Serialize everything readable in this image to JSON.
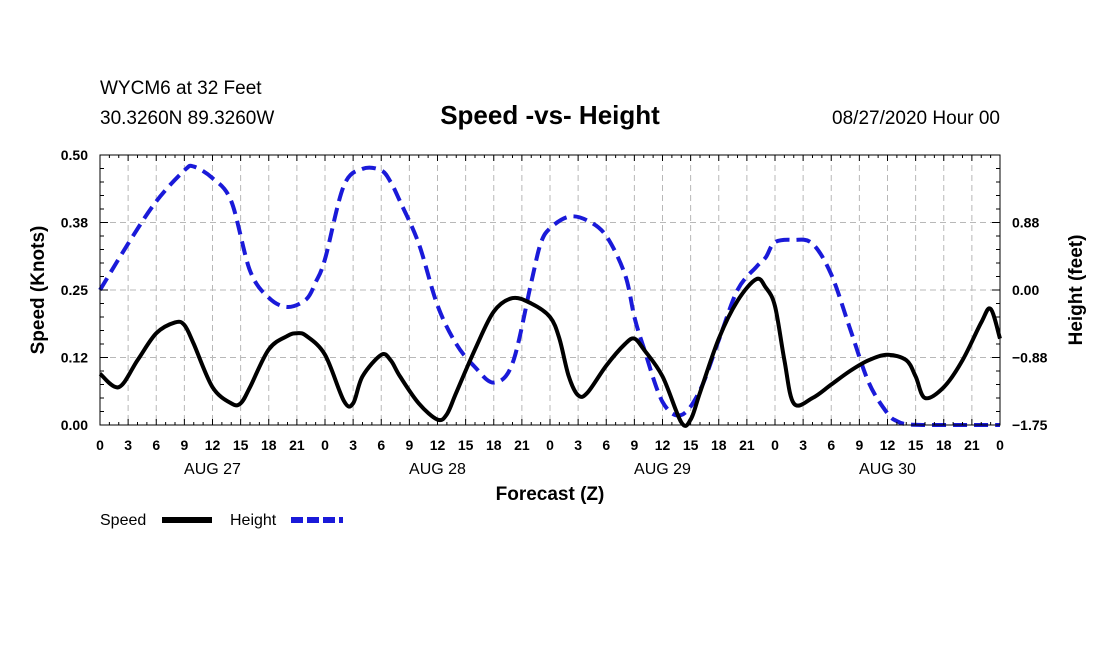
{
  "chart_data": {
    "type": "line",
    "station": "WYCM6 at 32 Feet",
    "location": "30.3260N 89.3260W",
    "title": "Speed -vs- Height",
    "issued": "08/27/2020 Hour 00",
    "xlabel": "Forecast (Z)",
    "ylabel_left": "Speed (Knots)",
    "ylabel_right": "Height (feet)",
    "x_tick_labels": [
      "0",
      "3",
      "6",
      "9",
      "12",
      "15",
      "18",
      "21",
      "0",
      "3",
      "6",
      "9",
      "12",
      "15",
      "18",
      "21",
      "0",
      "3",
      "6",
      "9",
      "12",
      "15",
      "18",
      "21",
      "0",
      "3",
      "6",
      "9",
      "12",
      "15",
      "18",
      "21",
      "0"
    ],
    "day_labels": [
      "AUG 27",
      "AUG 28",
      "AUG 29",
      "AUG 30"
    ],
    "y_left_ticks": [
      "0.00",
      "0.12",
      "0.25",
      "0.38",
      "0.50"
    ],
    "y_left_lim": [
      0,
      0.5
    ],
    "y_right_ticks": [
      "−1.75",
      "−0.88",
      "0.00",
      "0.88"
    ],
    "y_right_lim": [
      -1.75,
      1.75
    ],
    "x_range_hours": [
      0,
      96
    ],
    "grid": true,
    "legend": {
      "position": "bottom-left",
      "speed_label": "Speed",
      "height_label": "Height"
    },
    "series": [
      {
        "name": "Speed",
        "axis": "left",
        "color": "#000000",
        "style": "solid",
        "hours": [
          0,
          2,
          4,
          6,
          8,
          9,
          10,
          12,
          14,
          15,
          16,
          18,
          20,
          21,
          22,
          24,
          26,
          27,
          28,
          30,
          31,
          32,
          34,
          36,
          37,
          38,
          40,
          42,
          44,
          46,
          48,
          49,
          50,
          51,
          52,
          54,
          56,
          57,
          58,
          60,
          62,
          63,
          64,
          66,
          68,
          70,
          71,
          72,
          73,
          74,
          76,
          78,
          80,
          82,
          84,
          86,
          87,
          88,
          90,
          92,
          94,
          95,
          96
        ],
        "values": [
          0.095,
          0.07,
          0.12,
          0.17,
          0.19,
          0.185,
          0.15,
          0.07,
          0.04,
          0.04,
          0.07,
          0.14,
          0.165,
          0.17,
          0.165,
          0.13,
          0.045,
          0.04,
          0.09,
          0.13,
          0.12,
          0.09,
          0.04,
          0.01,
          0.02,
          0.06,
          0.14,
          0.21,
          0.235,
          0.225,
          0.2,
          0.16,
          0.09,
          0.055,
          0.06,
          0.11,
          0.15,
          0.16,
          0.14,
          0.09,
          0.005,
          0.01,
          0.06,
          0.16,
          0.23,
          0.27,
          0.255,
          0.22,
          0.12,
          0.04,
          0.05,
          0.075,
          0.1,
          0.12,
          0.13,
          0.12,
          0.09,
          0.05,
          0.07,
          0.12,
          0.19,
          0.215,
          0.16
        ]
      },
      {
        "name": "Height",
        "axis": "right",
        "color": "#1a1ad9",
        "style": "dashed",
        "hours": [
          0,
          3,
          6,
          9,
          10,
          12,
          14,
          16,
          18,
          20,
          22,
          23,
          24,
          26,
          28,
          30,
          31,
          32,
          34,
          36,
          38,
          40,
          42,
          44,
          46,
          47,
          48,
          50,
          52,
          54,
          56,
          57,
          58,
          60,
          62,
          64,
          66,
          68,
          70,
          71,
          72,
          74,
          76,
          78,
          80,
          82,
          84,
          85,
          86,
          88,
          90,
          92,
          94,
          96
        ],
        "values": [
          0.0,
          0.6,
          1.15,
          1.55,
          1.6,
          1.45,
          1.15,
          0.25,
          -0.1,
          -0.22,
          -0.12,
          0.1,
          0.4,
          1.35,
          1.57,
          1.55,
          1.4,
          1.15,
          0.6,
          -0.2,
          -0.7,
          -1.0,
          -1.2,
          -0.95,
          0.1,
          0.6,
          0.8,
          0.95,
          0.9,
          0.7,
          0.2,
          -0.35,
          -0.75,
          -1.45,
          -1.62,
          -1.3,
          -0.65,
          0.0,
          0.3,
          0.42,
          0.62,
          0.65,
          0.6,
          0.2,
          -0.5,
          -1.2,
          -1.6,
          -1.7,
          -1.74,
          -1.75,
          -1.75,
          -1.75,
          -1.75,
          -1.75
        ]
      }
    ]
  }
}
